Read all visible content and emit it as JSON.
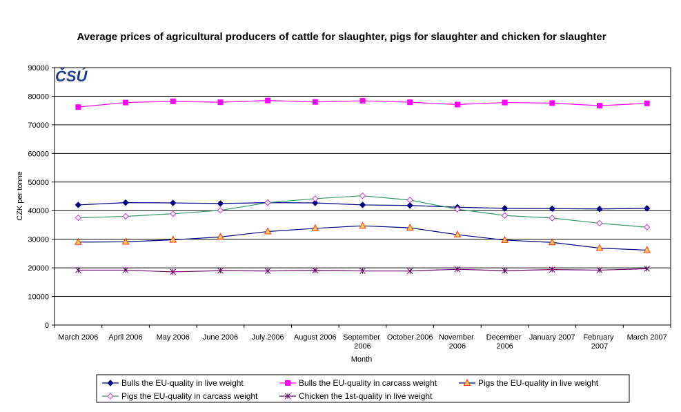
{
  "chart_data": {
    "type": "line",
    "title": "Average prices of agricultural producers of cattle for slaughter, pigs for slaughter and chicken for slaughter",
    "logo": "ČSÚ",
    "x_label": "Month",
    "y_label": "CZK per tonne",
    "categories": [
      "March 2006",
      "April 2006",
      "May 2006",
      "June 2006",
      "July 2006",
      "August 2006",
      "September 2006",
      "October 2006",
      "November 2006",
      "December 2006",
      "January 2007",
      "February 2007",
      "March 2007"
    ],
    "ylim": [
      0,
      90000
    ],
    "yticks": [
      0,
      10000,
      20000,
      30000,
      40000,
      50000,
      60000,
      70000,
      80000,
      90000
    ],
    "grid": true,
    "series": [
      {
        "name": "Bulls the EU-quality in live weight",
        "color": "#000080",
        "marker": "diamond",
        "marker_color": "#000080",
        "marker_fill": "#000080",
        "values": [
          42000,
          42800,
          42700,
          42500,
          42800,
          42700,
          42000,
          41800,
          41200,
          40800,
          40700,
          40600,
          40800
        ]
      },
      {
        "name": "Bulls the EU-quality in carcass weight",
        "color": "#ff00ff",
        "marker": "square",
        "marker_color": "#ff00ff",
        "marker_fill": "#ff00ff",
        "values": [
          76200,
          77800,
          78200,
          77900,
          78500,
          78000,
          78400,
          77900,
          77100,
          77800,
          77600,
          76700,
          77500
        ]
      },
      {
        "name": "Pigs the EU-quality in live weight",
        "color": "#000080",
        "marker": "triangle",
        "marker_color": "#ff3300",
        "marker_fill": "#ffcc66",
        "values": [
          29000,
          29100,
          29800,
          30800,
          32700,
          33800,
          34700,
          34000,
          31600,
          29700,
          28900,
          26900,
          26200
        ]
      },
      {
        "name": "Pigs the EU-quality in carcass weight",
        "color": "#339966",
        "marker": "diamond",
        "marker_color": "#cc33cc",
        "marker_fill": "#ffffff",
        "values": [
          37500,
          38000,
          38900,
          40100,
          42800,
          44200,
          45200,
          43700,
          40500,
          38300,
          37400,
          35600,
          34200
        ]
      },
      {
        "name": "Chicken the 1st-quality in live weight",
        "color": "#660066",
        "marker": "star",
        "marker_color": "#660066",
        "marker_fill": "none",
        "values": [
          19200,
          19200,
          18600,
          19000,
          18900,
          19100,
          18900,
          18900,
          19500,
          19000,
          19400,
          19200,
          19700
        ]
      }
    ]
  }
}
